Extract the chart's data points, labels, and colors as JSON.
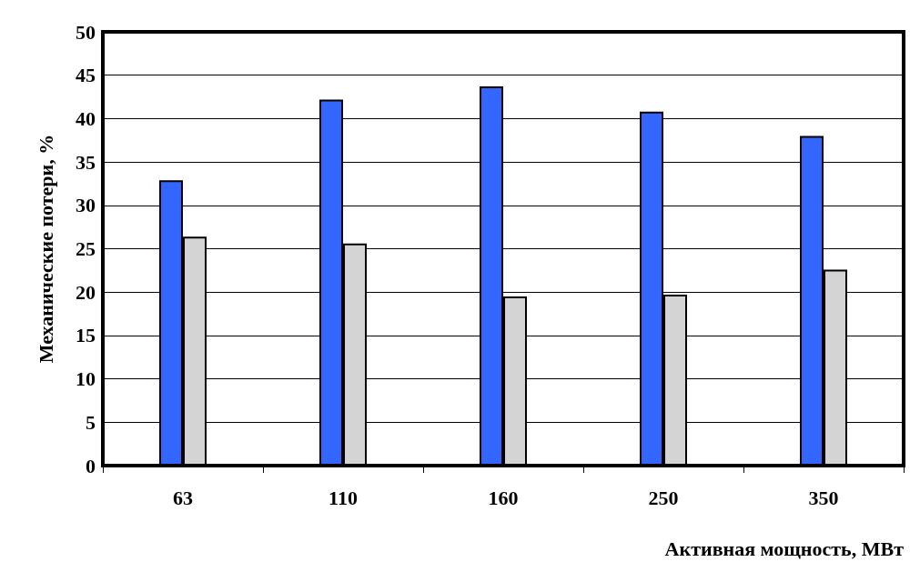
{
  "chart_data": {
    "type": "bar",
    "xlabel": "Активная мощность, МВт",
    "ylabel": "Механические потери, %",
    "categories": [
      "63",
      "110",
      "160",
      "250",
      "350"
    ],
    "series": [
      {
        "color": "#3366ff",
        "values": [
          32.9,
          42.2,
          43.7,
          40.8,
          38.0
        ]
      },
      {
        "color": "#d4d4d4",
        "values": [
          26.4,
          25.6,
          19.5,
          19.7,
          22.6
        ]
      }
    ],
    "ylim": [
      0,
      50
    ],
    "yticks": [
      0,
      5,
      10,
      15,
      20,
      25,
      30,
      35,
      40,
      45,
      50
    ],
    "grid": "y"
  }
}
